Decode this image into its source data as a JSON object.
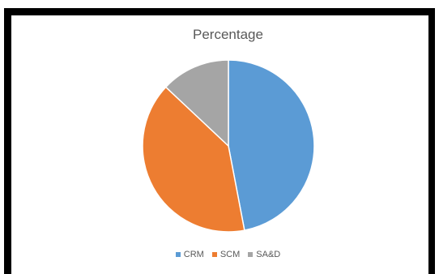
{
  "chart_data": {
    "type": "pie",
    "title": "Percentage",
    "categories": [
      "CRM",
      "SCM",
      "SA&D"
    ],
    "values": [
      47,
      40,
      13
    ],
    "colors": [
      "#5B9BD5",
      "#ED7D31",
      "#A5A5A5"
    ],
    "legend_position": "bottom",
    "start_angle": "top",
    "direction": "clockwise"
  }
}
